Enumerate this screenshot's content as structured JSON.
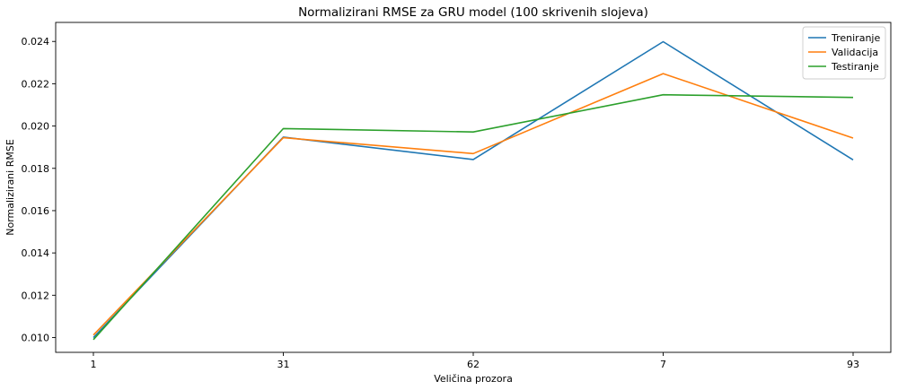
{
  "chart_data": {
    "type": "line",
    "title": "Normalizirani RMSE za GRU model (100 skrivenih slojeva)",
    "xlabel": "Veličina prozora",
    "ylabel": "Normalizirani RMSE",
    "categories": [
      "1",
      "31",
      "62",
      "7",
      "93"
    ],
    "ylim": [
      0.0093,
      0.0249
    ],
    "yticks": [
      0.01,
      0.012,
      0.014,
      0.016,
      0.018,
      0.02,
      0.022,
      0.024
    ],
    "ytick_labels": [
      "0.010",
      "0.012",
      "0.014",
      "0.016",
      "0.018",
      "0.020",
      "0.022",
      "0.024"
    ],
    "grid": false,
    "legend_position": "top-right",
    "series": [
      {
        "name": "Treniranje",
        "color": "#1f77b4",
        "values": [
          0.01,
          0.01948,
          0.01842,
          0.02399,
          0.0184
        ]
      },
      {
        "name": "Validacija",
        "color": "#ff7f0e",
        "values": [
          0.01012,
          0.01945,
          0.0187,
          0.02248,
          0.01943
        ]
      },
      {
        "name": "Testiranje",
        "color": "#2ca02c",
        "values": [
          0.0099,
          0.01988,
          0.01972,
          0.02148,
          0.02135
        ]
      }
    ]
  }
}
